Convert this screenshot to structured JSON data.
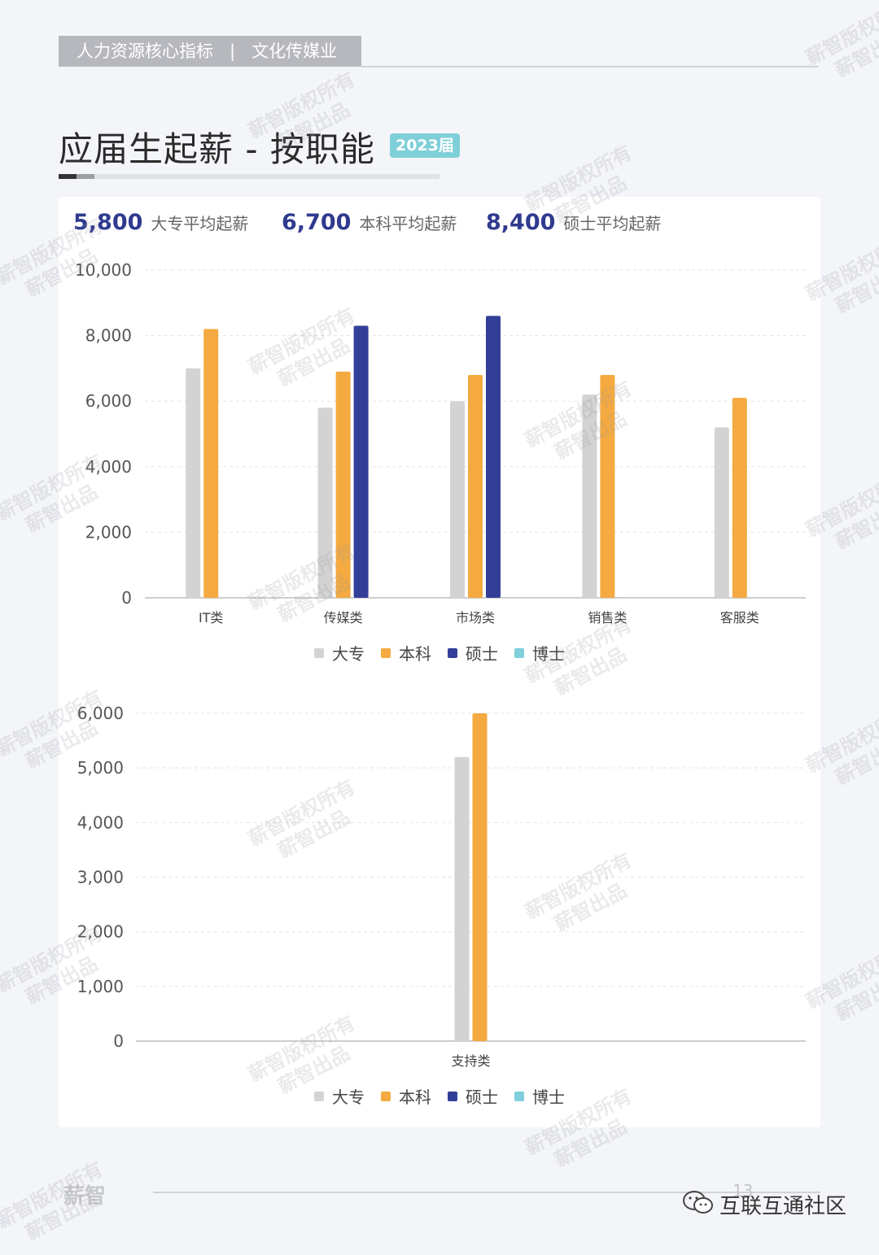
{
  "header": {
    "section": "人力资源核心指标",
    "separator": "|",
    "industry": "文化传媒业"
  },
  "title": "应届生起薪 - 按职能",
  "year_badge": "2023届",
  "kpis": [
    {
      "value": "5,800",
      "label": "大专平均起薪"
    },
    {
      "value": "6,700",
      "label": "本科平均起薪"
    },
    {
      "value": "8,400",
      "label": "硕士平均起薪"
    }
  ],
  "legend": [
    {
      "name": "大专",
      "color": "#d3d3d3"
    },
    {
      "name": "本科",
      "color": "#f4aa40"
    },
    {
      "name": "硕士",
      "color": "#323f99"
    },
    {
      "name": "博士",
      "color": "#7fd0dc"
    }
  ],
  "chart_data": [
    {
      "type": "bar",
      "categories": [
        "IT类",
        "传媒类",
        "市场类",
        "销售类",
        "客服类"
      ],
      "series": [
        {
          "name": "大专",
          "values": [
            7000,
            5800,
            6000,
            6200,
            5200
          ]
        },
        {
          "name": "本科",
          "values": [
            8200,
            6900,
            6800,
            6800,
            6100
          ]
        },
        {
          "name": "硕士",
          "values": [
            null,
            8300,
            8600,
            null,
            null
          ]
        },
        {
          "name": "博士",
          "values": [
            null,
            null,
            null,
            null,
            null
          ]
        }
      ],
      "ylim": [
        0,
        10000
      ],
      "yticks": [
        "0",
        "2,000",
        "4,000",
        "6,000",
        "8,000",
        "10,000"
      ],
      "ytick_values": [
        0,
        2000,
        4000,
        6000,
        8000,
        10000
      ],
      "grid": true,
      "legend_position": "bottom"
    },
    {
      "type": "bar",
      "categories": [
        "支持类"
      ],
      "series": [
        {
          "name": "大专",
          "values": [
            5200
          ]
        },
        {
          "name": "本科",
          "values": [
            6000
          ]
        },
        {
          "name": "硕士",
          "values": [
            null
          ]
        },
        {
          "name": "博士",
          "values": [
            null
          ]
        }
      ],
      "ylim": [
        0,
        6000
      ],
      "yticks": [
        "0",
        "1,000",
        "2,000",
        "3,000",
        "4,000",
        "5,000",
        "6,000"
      ],
      "ytick_values": [
        0,
        1000,
        2000,
        3000,
        4000,
        5000,
        6000
      ],
      "grid": true,
      "legend_position": "bottom"
    }
  ],
  "footer": {
    "logo": "薪智",
    "page": "13",
    "wechat": "互联互通社区"
  },
  "watermark": {
    "line1": "薪智版权所有",
    "line2": "薪智出品"
  }
}
